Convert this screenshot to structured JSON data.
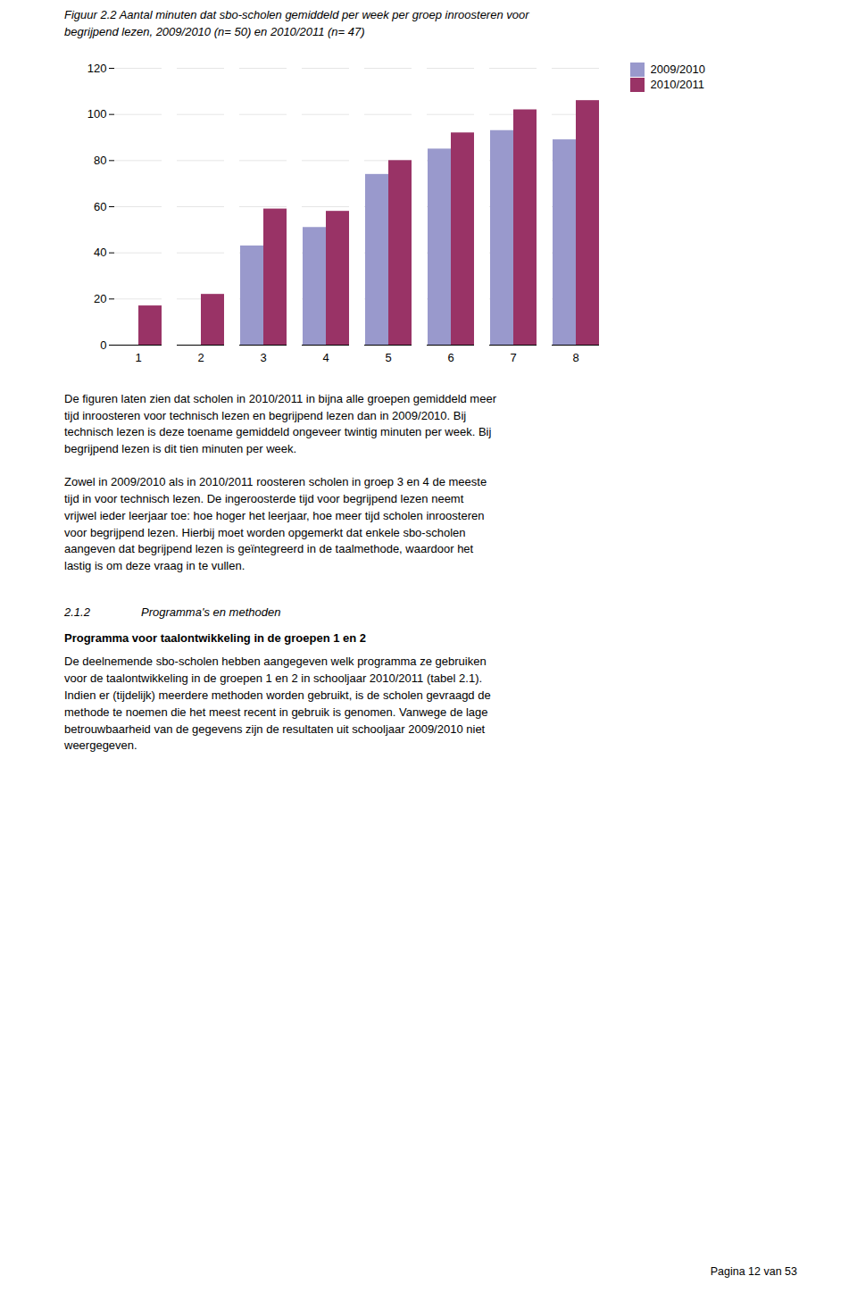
{
  "chart_data": {
    "type": "bar",
    "title": "Figuur 2.2 Aantal minuten dat sbo-scholen gemiddeld per week per groep inroosteren voor\nbegrijpend lezen, 2009/2010 (n= 50) en 2010/2011 (n= 47)",
    "categories": [
      1,
      2,
      3,
      4,
      5,
      6,
      7,
      8
    ],
    "series": [
      {
        "name": "2009/2010",
        "color": "#9999CC",
        "values": [
          0,
          0,
          43,
          51,
          74,
          85,
          93,
          89
        ]
      },
      {
        "name": "2010/2011",
        "color": "#993366",
        "values": [
          17,
          22,
          59,
          58,
          80,
          92,
          102,
          106
        ]
      }
    ],
    "ylim": [
      0,
      120
    ],
    "yticks": [
      0,
      20,
      40,
      60,
      80,
      100,
      120
    ],
    "grid": true,
    "legend": "right",
    "annotations": [
      "De figuren laten zien dat scholen in 2010/2011 in bijna alle groepen gemiddeld meer\ntijd inroosteren voor technisch lezen en begrijpend lezen dan in 2009/2010. Bij\ntechnisch lezen is deze toename gemiddeld ongeveer twintig minuten per week. Bij\nbegrijpend lezen is dit tien minuten per week.",
      "Zowel in 2009/2010 als in 2010/2011 roosteren scholen in groep 3 en 4 de meeste\ntijd in voor technisch lezen. De ingeroosterde tijd voor begrijpend lezen neemt\nvrijwel ieder leerjaar toe: hoe hoger het leerjaar, hoe meer tijd scholen inroosteren\nvoor begrijpend lezen. Hierbij moet worden opgemerkt dat enkele sbo-scholen\naangeven dat begrijpend lezen is geïntegreerd in de taalmethode, waardoor het\nlastig is om deze vraag in te vullen.",
      "2.1.2",
      "Programma's en methoden",
      "Programma voor taalontwikkeling in de groepen 1 en 2",
      "De deelnemende sbo-scholen hebben aangegeven welk programma ze gebruiken\nvoor de taalontwikkeling in de groepen 1 en 2 in schooljaar 2010/2011 (tabel 2.1).\nIndien er (tijdelijk) meerdere methoden worden gebruikt, is de scholen gevraagd de\nmethode te noemen die het meest recent in gebruik is genomen. Vanwege de lage\nbetrouwbaarheid van de gegevens zijn de resultaten uit schooljaar 2009/2010 niet\nweergegeven.",
      "Pagina 12 van 53"
    ]
  }
}
